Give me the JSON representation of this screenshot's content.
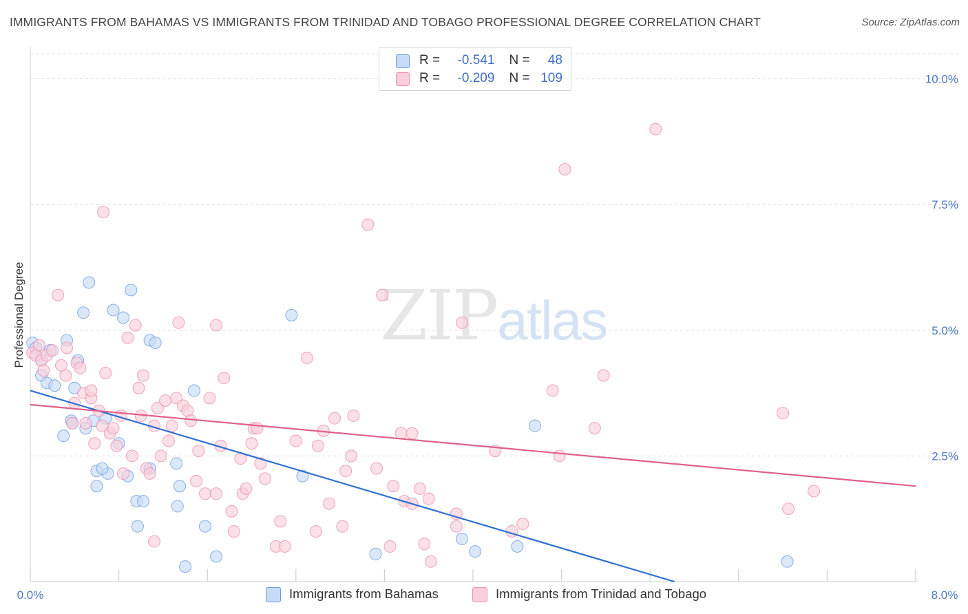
{
  "title": "IMMIGRANTS FROM BAHAMAS VS IMMIGRANTS FROM TRINIDAD AND TOBAGO PROFESSIONAL DEGREE CORRELATION CHART",
  "source": "Source: ZipAtlas.com",
  "watermark": {
    "zip": "ZIP",
    "atlas": "atlas"
  },
  "legend": {
    "r_label": "R =",
    "n_label": "N =",
    "rows": [
      {
        "r": "-0.541",
        "n": "48"
      },
      {
        "r": "-0.209",
        "n": "109"
      }
    ]
  },
  "colors": {
    "blue": "#6b9be0",
    "blue_fill": "#c8dbf6",
    "blue_line": "#2f6fd0",
    "pink": "#ec8fae",
    "pink_fill": "#f9cfdc",
    "pink_line": "#e0608a",
    "axis_label": "#4a78c2"
  },
  "chart_data": {
    "type": "scatter",
    "title": "IMMIGRANTS FROM BAHAMAS VS IMMIGRANTS FROM TRINIDAD AND TOBAGO PROFESSIONAL DEGREE CORRELATION CHART",
    "xlabel": "",
    "ylabel": "Professional Degree",
    "xlim": [
      0,
      8.0
    ],
    "ylim": [
      0,
      10.5
    ],
    "x_tick_labels": [
      "0.0%",
      "8.0%"
    ],
    "y_tick_labels": [
      "2.5%",
      "5.0%",
      "7.5%",
      "10.0%"
    ],
    "y_ticks": [
      2.5,
      5.0,
      7.5,
      10.0
    ],
    "grid": "horizontal dashed",
    "legend_position": "top-center",
    "series": [
      {
        "name": "Immigrants from Bahamas",
        "r": -0.541,
        "n": 48,
        "trend": {
          "x": [
            0,
            5.82
          ],
          "y": [
            3.8,
            0
          ]
        },
        "points": [
          [
            0.02,
            4.75
          ],
          [
            0.05,
            4.65
          ],
          [
            0.1,
            4.4
          ],
          [
            0.1,
            4.1
          ],
          [
            0.15,
            3.95
          ],
          [
            0.22,
            3.9
          ],
          [
            0.33,
            4.8
          ],
          [
            0.43,
            4.4
          ],
          [
            0.48,
            5.35
          ],
          [
            0.53,
            5.95
          ],
          [
            0.4,
            3.85
          ],
          [
            0.37,
            3.2
          ],
          [
            0.3,
            2.9
          ],
          [
            0.38,
            3.15
          ],
          [
            0.57,
            3.2
          ],
          [
            0.68,
            3.25
          ],
          [
            0.5,
            3.05
          ],
          [
            0.6,
            2.2
          ],
          [
            0.7,
            2.15
          ],
          [
            0.65,
            2.25
          ],
          [
            0.75,
            5.4
          ],
          [
            0.84,
            5.25
          ],
          [
            0.91,
            5.8
          ],
          [
            0.8,
            2.75
          ],
          [
            0.6,
            1.9
          ],
          [
            0.88,
            2.1
          ],
          [
            0.96,
            1.6
          ],
          [
            1.02,
            1.6
          ],
          [
            1.08,
            4.8
          ],
          [
            1.13,
            4.75
          ],
          [
            1.08,
            2.25
          ],
          [
            1.32,
            2.35
          ],
          [
            1.35,
            1.9
          ],
          [
            1.33,
            1.5
          ],
          [
            1.4,
            0.3
          ],
          [
            1.48,
            3.8
          ],
          [
            1.58,
            1.1
          ],
          [
            1.68,
            0.5
          ],
          [
            2.36,
            5.3
          ],
          [
            2.46,
            2.1
          ],
          [
            0.97,
            1.1
          ],
          [
            3.12,
            0.55
          ],
          [
            3.9,
            0.85
          ],
          [
            4.02,
            0.6
          ],
          [
            4.4,
            0.7
          ],
          [
            4.56,
            3.1
          ],
          [
            6.84,
            0.4
          ],
          [
            0.18,
            4.6
          ]
        ]
      },
      {
        "name": "Immigrants from Trinidad and Tobago",
        "r": -0.209,
        "n": 109,
        "trend": {
          "x": [
            0,
            8.0
          ],
          "y": [
            3.52,
            1.9
          ]
        },
        "points": [
          [
            0.02,
            4.55
          ],
          [
            0.05,
            4.5
          ],
          [
            0.08,
            4.7
          ],
          [
            0.1,
            4.4
          ],
          [
            0.12,
            4.2
          ],
          [
            0.15,
            4.5
          ],
          [
            0.2,
            4.6
          ],
          [
            0.25,
            5.7
          ],
          [
            0.28,
            4.3
          ],
          [
            0.32,
            4.1
          ],
          [
            0.33,
            4.65
          ],
          [
            0.4,
            3.55
          ],
          [
            0.42,
            4.35
          ],
          [
            0.45,
            4.25
          ],
          [
            0.48,
            3.75
          ],
          [
            0.5,
            3.15
          ],
          [
            0.55,
            3.65
          ],
          [
            0.58,
            2.75
          ],
          [
            0.62,
            3.4
          ],
          [
            0.66,
            7.35
          ],
          [
            0.68,
            4.15
          ],
          [
            0.72,
            2.95
          ],
          [
            0.75,
            3.05
          ],
          [
            0.78,
            2.7
          ],
          [
            0.82,
            3.3
          ],
          [
            0.84,
            2.15
          ],
          [
            0.88,
            4.85
          ],
          [
            0.92,
            2.5
          ],
          [
            0.95,
            5.1
          ],
          [
            0.98,
            3.85
          ],
          [
            1.0,
            3.3
          ],
          [
            1.02,
            4.1
          ],
          [
            1.05,
            2.25
          ],
          [
            1.08,
            2.15
          ],
          [
            1.12,
            3.1
          ],
          [
            1.15,
            3.45
          ],
          [
            1.18,
            2.5
          ],
          [
            1.22,
            3.6
          ],
          [
            1.25,
            2.8
          ],
          [
            1.28,
            3.1
          ],
          [
            1.32,
            3.65
          ],
          [
            1.34,
            5.15
          ],
          [
            1.38,
            3.5
          ],
          [
            1.42,
            3.4
          ],
          [
            1.45,
            3.2
          ],
          [
            1.5,
            2.0
          ],
          [
            1.52,
            2.6
          ],
          [
            1.58,
            1.75
          ],
          [
            1.62,
            3.65
          ],
          [
            1.68,
            1.75
          ],
          [
            1.68,
            5.1
          ],
          [
            1.72,
            2.7
          ],
          [
            1.75,
            4.05
          ],
          [
            1.82,
            1.4
          ],
          [
            1.84,
            1.0
          ],
          [
            1.9,
            2.45
          ],
          [
            1.92,
            1.75
          ],
          [
            1.95,
            1.85
          ],
          [
            2.0,
            2.75
          ],
          [
            2.02,
            3.05
          ],
          [
            2.05,
            3.05
          ],
          [
            2.08,
            2.35
          ],
          [
            2.12,
            2.05
          ],
          [
            2.22,
            0.7
          ],
          [
            2.26,
            1.2
          ],
          [
            2.3,
            0.7
          ],
          [
            2.4,
            2.8
          ],
          [
            2.5,
            4.45
          ],
          [
            2.58,
            1.0
          ],
          [
            2.6,
            2.7
          ],
          [
            2.65,
            3.0
          ],
          [
            2.7,
            1.55
          ],
          [
            2.75,
            3.25
          ],
          [
            2.82,
            1.1
          ],
          [
            2.85,
            2.2
          ],
          [
            2.9,
            2.5
          ],
          [
            2.92,
            3.3
          ],
          [
            3.05,
            7.1
          ],
          [
            3.13,
            2.25
          ],
          [
            3.18,
            5.7
          ],
          [
            3.25,
            0.7
          ],
          [
            3.28,
            1.9
          ],
          [
            3.35,
            2.95
          ],
          [
            3.38,
            1.6
          ],
          [
            3.45,
            1.55
          ],
          [
            3.45,
            2.95
          ],
          [
            3.52,
            1.85
          ],
          [
            3.56,
            0.75
          ],
          [
            3.6,
            1.65
          ],
          [
            3.62,
            0.4
          ],
          [
            3.85,
            1.35
          ],
          [
            3.85,
            1.1
          ],
          [
            3.9,
            5.15
          ],
          [
            4.2,
            2.6
          ],
          [
            4.35,
            1.0
          ],
          [
            4.45,
            1.15
          ],
          [
            4.72,
            3.8
          ],
          [
            4.78,
            2.5
          ],
          [
            4.83,
            8.2
          ],
          [
            5.1,
            3.05
          ],
          [
            5.18,
            4.1
          ],
          [
            5.65,
            9.0
          ],
          [
            6.8,
            3.35
          ],
          [
            6.85,
            1.45
          ],
          [
            7.08,
            1.8
          ],
          [
            0.55,
            3.8
          ],
          [
            0.65,
            3.1
          ],
          [
            1.12,
            0.8
          ],
          [
            0.38,
            3.15
          ]
        ]
      }
    ]
  },
  "bottom_legend": [
    {
      "label": "Immigrants from Bahamas"
    },
    {
      "label": "Immigrants from Trinidad and Tobago"
    }
  ]
}
